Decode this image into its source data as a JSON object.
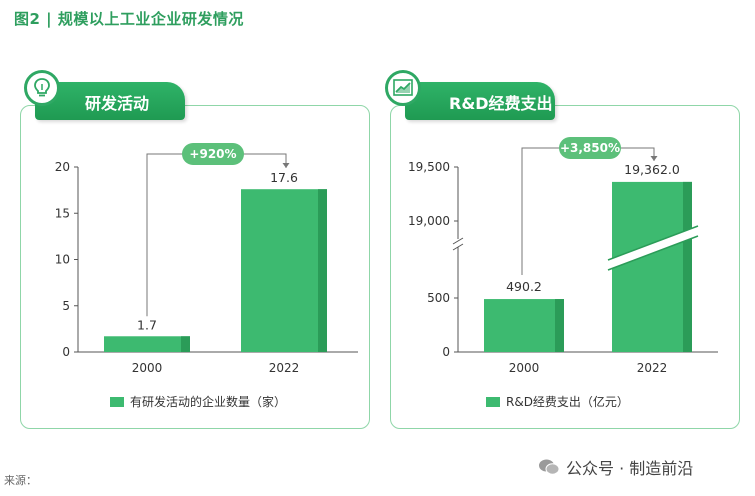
{
  "figure_title": "图2 | 规模以上工业企业研发情况",
  "colors": {
    "bar": "#3dba70",
    "bar_dark": "#2b9c58",
    "pill": "#5cc07a",
    "accent": "#2e9e5e"
  },
  "panels": [
    {
      "header": "研发活动",
      "icon": "lightbulb-icon",
      "legend": "有研发活动的企业数量（家）",
      "growth_label": "+920%"
    },
    {
      "header": "R&D经费支出",
      "icon": "line-chart-icon",
      "legend": "R&D经费支出（亿元）",
      "growth_label": "+3,850%"
    }
  ],
  "chart_data": [
    {
      "type": "bar",
      "categories": [
        "2000",
        "2022"
      ],
      "values": [
        1.7,
        17.6
      ],
      "value_labels": [
        "1.7",
        "17.6"
      ],
      "ylim": [
        0,
        20
      ],
      "yticks": [
        0,
        5,
        10,
        15,
        20
      ],
      "series_name": "有研发活动的企业数量（家）",
      "annotation": "+920%"
    },
    {
      "type": "bar",
      "categories": [
        "2000",
        "2022"
      ],
      "values": [
        490.2,
        19362.0
      ],
      "value_labels": [
        "490.2",
        "19,362.0"
      ],
      "ytick_labels": [
        "0",
        "500",
        "19,000",
        "19,500"
      ],
      "axis_break": true,
      "series_name": "R&D经费支出（亿元）",
      "annotation": "+3,850%"
    }
  ],
  "source": "来源：",
  "watermark": "公众号 · 制造前沿"
}
